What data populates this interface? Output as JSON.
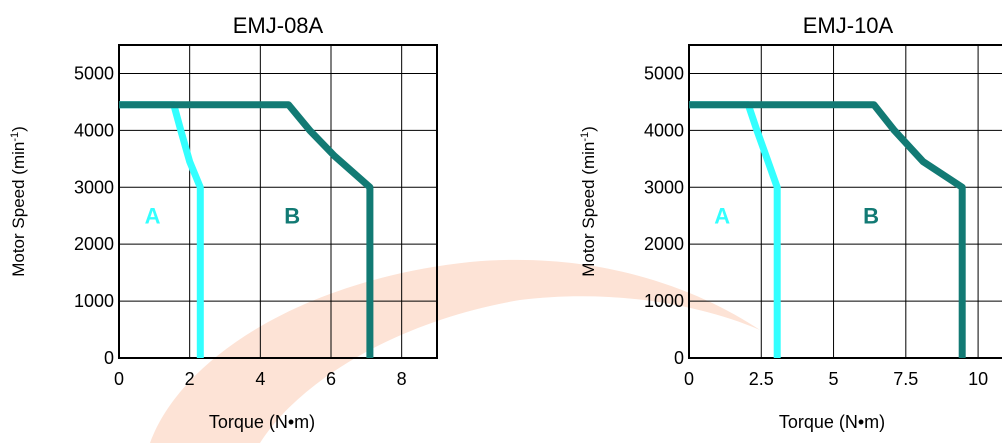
{
  "watermark": {
    "color": "#fde3d6"
  },
  "chart_data": [
    {
      "type": "line",
      "title": "EMJ-08A",
      "xlabel": "Torque (N•m)",
      "ylabel": "Motor  Speed (min",
      "ylabel_sup": "-1",
      "ylabel_close": ")",
      "xlim": [
        0,
        9
      ],
      "ylim": [
        0,
        5500
      ],
      "xticks": [
        0,
        2,
        4,
        6,
        8
      ],
      "xtick_labels": [
        "0",
        "2",
        "4",
        "6",
        "8"
      ],
      "yticks": [
        0,
        1000,
        2000,
        3000,
        4000,
        5000
      ],
      "ytick_labels": [
        "0",
        "1000",
        "2000",
        "3000",
        "4000",
        "5000"
      ],
      "grid": true,
      "series": [
        {
          "name": "A",
          "color": "#33ffff",
          "points": [
            [
              0,
              4450
            ],
            [
              1.55,
              4450
            ],
            [
              1.75,
              4000
            ],
            [
              2.0,
              3450
            ],
            [
              2.3,
              3000
            ],
            [
              2.3,
              0
            ]
          ],
          "label_pos": [
            0.95,
            2500
          ]
        },
        {
          "name": "B",
          "color": "#127a74",
          "points": [
            [
              0,
              4450
            ],
            [
              4.8,
              4450
            ],
            [
              5.4,
              4000
            ],
            [
              6.1,
              3550
            ],
            [
              7.1,
              3000
            ],
            [
              7.1,
              0
            ]
          ],
          "label_pos": [
            4.9,
            2500
          ]
        }
      ]
    },
    {
      "type": "line",
      "title": "EMJ-10A",
      "xlabel": "Torque (N•m)",
      "ylabel": "Motor  Speed (min",
      "ylabel_sup": "-1",
      "ylabel_close": ")",
      "xlim": [
        0,
        11
      ],
      "ylim": [
        0,
        5500
      ],
      "xticks": [
        0,
        2.5,
        5,
        7.5,
        10
      ],
      "xtick_labels": [
        "0",
        "2.5",
        "5",
        "7.5",
        "10"
      ],
      "yticks": [
        0,
        1000,
        2000,
        3000,
        4000,
        5000
      ],
      "ytick_labels": [
        "0",
        "1000",
        "2000",
        "3000",
        "4000",
        "5000"
      ],
      "grid": true,
      "series": [
        {
          "name": "A",
          "color": "#33ffff",
          "points": [
            [
              0,
              4450
            ],
            [
              2.05,
              4450
            ],
            [
              2.35,
              4000
            ],
            [
              2.7,
              3500
            ],
            [
              3.05,
              3000
            ],
            [
              3.05,
              0
            ]
          ],
          "label_pos": [
            1.15,
            2500
          ]
        },
        {
          "name": "B",
          "color": "#127a74",
          "points": [
            [
              0,
              4450
            ],
            [
              6.4,
              4450
            ],
            [
              7.1,
              4000
            ],
            [
              8.1,
              3450
            ],
            [
              9.45,
              3000
            ],
            [
              9.45,
              0
            ]
          ],
          "label_pos": [
            6.3,
            2500
          ]
        }
      ]
    }
  ]
}
